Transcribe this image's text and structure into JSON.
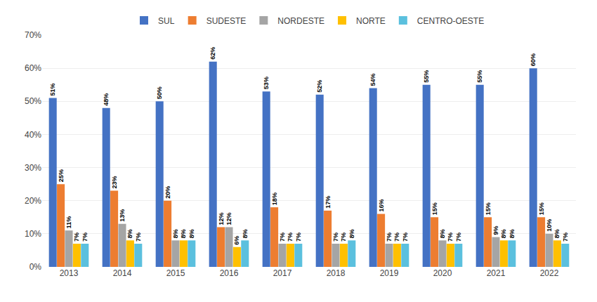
{
  "chart_data": {
    "type": "bar",
    "categories": [
      "2013",
      "2014",
      "2015",
      "2016",
      "2017",
      "2018",
      "2019",
      "2020",
      "2021",
      "2022"
    ],
    "series": [
      {
        "name": "SUL",
        "color": "#4472C4",
        "values": [
          51,
          48,
          50,
          62,
          53,
          52,
          54,
          55,
          55,
          60
        ],
        "value_labels": [
          "51%",
          "48%",
          "50%",
          "62%",
          "53%",
          "52%",
          "54%",
          "55%",
          "55%",
          "60%"
        ]
      },
      {
        "name": "SUDESTE",
        "color": "#ED7D31",
        "values": [
          25,
          23,
          20,
          12,
          18,
          17,
          16,
          15,
          15,
          15
        ],
        "value_labels": [
          "25%",
          "23%",
          "20%",
          "12%",
          "18%",
          "17%",
          "16%",
          "15%",
          "15%",
          "15%"
        ]
      },
      {
        "name": "NORDESTE",
        "color": "#A5A5A5",
        "values": [
          11,
          13,
          8,
          12,
          7,
          7,
          7,
          8,
          9,
          10
        ],
        "value_labels": [
          "11%",
          "13%",
          "8%",
          "12%",
          "7%",
          "7%",
          "7%",
          "8%",
          "9%",
          "10%"
        ]
      },
      {
        "name": "NORTE",
        "color": "#FFC000",
        "values": [
          7,
          8,
          8,
          6,
          7,
          7,
          7,
          7,
          8,
          8
        ],
        "value_labels": [
          "7%",
          "8%",
          "8%",
          "6%",
          "7%",
          "7%",
          "7%",
          "7%",
          "8%",
          "8%"
        ]
      },
      {
        "name": "CENTRO-OESTE",
        "color": "#5BC0DE",
        "values": [
          7,
          7,
          8,
          8,
          7,
          8,
          7,
          7,
          8,
          7
        ],
        "value_labels": [
          "7%",
          "7%",
          "8%",
          "8%",
          "7%",
          "8%",
          "7%",
          "7%",
          "8%",
          "7%"
        ]
      }
    ],
    "ylim": [
      0,
      70
    ],
    "yticks": [
      {
        "value": 0,
        "label": "0%"
      },
      {
        "value": 10,
        "label": "10%"
      },
      {
        "value": 20,
        "label": "20%"
      },
      {
        "value": 30,
        "label": "30%"
      },
      {
        "value": 40,
        "label": "40%"
      },
      {
        "value": 50,
        "label": "50%"
      },
      {
        "value": 60,
        "label": "60%"
      },
      {
        "value": 70,
        "label": "70%"
      }
    ],
    "grid": true,
    "legend": "top",
    "data_labels": true
  }
}
